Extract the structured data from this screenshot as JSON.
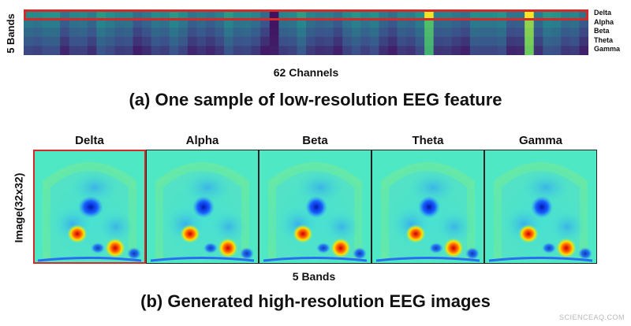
{
  "top_panel": {
    "ylabel": "5 Bands",
    "xlabel": "62 Channels",
    "band_labels": [
      "Delta",
      "Alpha",
      "Beta",
      "Theta",
      "Gamma"
    ],
    "channels": 62,
    "caption": "(a) One sample of low-resolution EEG feature"
  },
  "bottom_panel": {
    "ylabel": "Image(32x32)",
    "xlabel": "5 Bands",
    "titles": [
      "Delta",
      "Alpha",
      "Beta",
      "Theta",
      "Gamma"
    ],
    "caption": "(b) Generated high-resolution EEG images"
  },
  "colors": {
    "highlight": "#d42a2a",
    "background_cyan": "#4ee8c4",
    "bright_channel": "#e8e84a"
  },
  "watermark": "SCIENCEAQ.COM"
}
